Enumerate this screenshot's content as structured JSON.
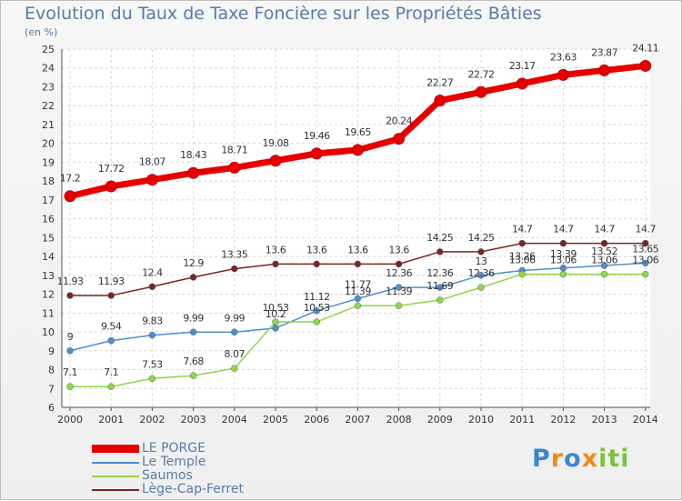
{
  "chart_data": {
    "type": "line",
    "title": "Evolution du Taux de Taxe Foncière sur les Propriétés Bâties",
    "ylabel": "(en %)",
    "xlabel": "",
    "categories": [
      "2000",
      "2001",
      "2002",
      "2003",
      "2004",
      "2005",
      "2006",
      "2007",
      "2008",
      "2009",
      "2010",
      "2011",
      "2012",
      "2013",
      "2014"
    ],
    "ylim": [
      6,
      25
    ],
    "yticks": [
      6,
      7,
      8,
      9,
      10,
      11,
      12,
      13,
      14,
      15,
      16,
      17,
      18,
      19,
      20,
      21,
      22,
      23,
      24,
      25
    ],
    "grid": true,
    "series": [
      {
        "name": "LE PORGE",
        "color": "#e60000",
        "values": [
          17.2,
          17.72,
          18.07,
          18.43,
          18.71,
          19.08,
          19.46,
          19.65,
          20.24,
          22.27,
          22.72,
          23.17,
          23.63,
          23.87,
          24.11
        ],
        "labels": [
          "17.2",
          "17.72",
          "18.07",
          "18.43",
          "18.71",
          "19.08",
          "19.46",
          "19.65",
          "20.24",
          "22.27",
          "22.72",
          "23.17",
          "23.63",
          "23.87",
          "24.11"
        ]
      },
      {
        "name": "Le Temple",
        "color": "#4d8fcc",
        "values": [
          9,
          9.54,
          9.83,
          9.99,
          9.99,
          10.2,
          11.12,
          11.77,
          12.36,
          12.36,
          13,
          13.26,
          13.39,
          13.52,
          13.65
        ],
        "labels": [
          "9",
          "9.54",
          "9.83",
          "9.99",
          "9.99",
          "10.2",
          "11.12",
          "11.77",
          "12.36",
          "12.36",
          "13",
          "13.26",
          "13.39",
          "13.52",
          "13.65"
        ]
      },
      {
        "name": "Saumos",
        "color": "#8fd64a",
        "values": [
          7.1,
          7.1,
          7.53,
          7.68,
          8.07,
          10.53,
          10.53,
          11.39,
          11.39,
          11.69,
          12.36,
          13.06,
          13.06,
          13.06,
          13.06
        ],
        "labels": [
          "7.1",
          "7.1",
          "7.53",
          "7.68",
          "8.07",
          "10.53",
          "10.53",
          "11.39",
          "11.39",
          "11.69",
          "12.36",
          "13.06",
          "13.06",
          "13.06",
          "13.06"
        ]
      },
      {
        "name": "Lège-Cap-Ferret",
        "color": "#7a2424",
        "values": [
          11.93,
          11.93,
          12.4,
          12.9,
          13.35,
          13.6,
          13.6,
          13.6,
          13.6,
          14.25,
          14.25,
          14.7,
          14.7,
          14.7,
          14.7
        ],
        "labels": [
          "11.93",
          "11.93",
          "12.4",
          "12.9",
          "13.35",
          "13.6",
          "13.6",
          "13.6",
          "13.6",
          "14.25",
          "14.25",
          "14.7",
          "14.7",
          "14.7",
          "14.7"
        ]
      }
    ],
    "legend_position": "bottom-left"
  },
  "brand": {
    "letters": [
      "P",
      "r",
      "o",
      "x",
      "i",
      "t",
      "i"
    ],
    "colors": [
      "#3e86d0",
      "#f08a1c",
      "#3e86d0",
      "#f08a1c",
      "#7cc242",
      "#7cc242",
      "#7cc242"
    ]
  }
}
